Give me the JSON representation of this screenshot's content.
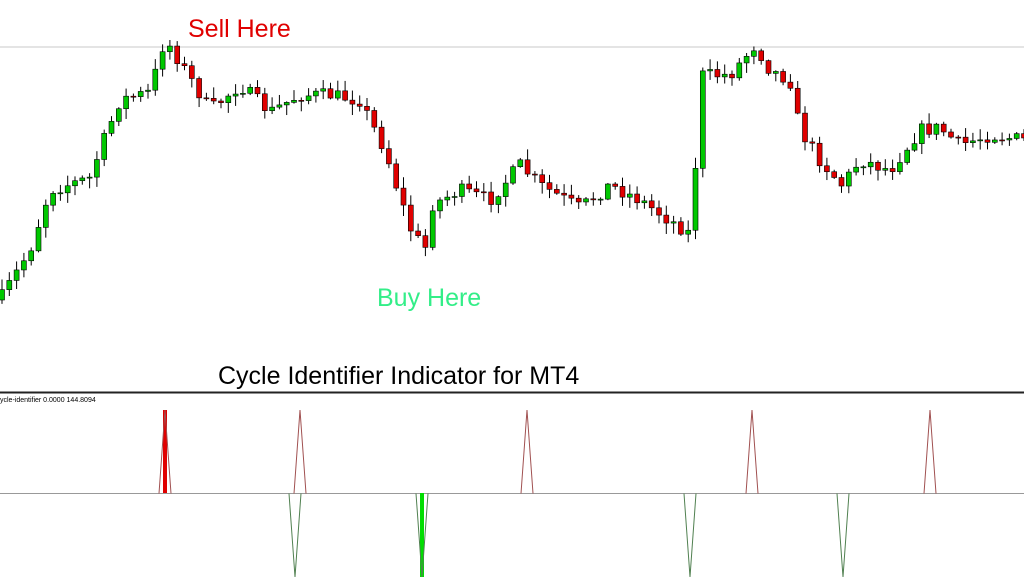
{
  "annotations": {
    "sell": "Sell Here",
    "buy": "Buy Here"
  },
  "caption": "Cycle Identifier Indicator for MT4",
  "indicator_label": "ycle-identifier 0.0000 144.8094"
}
